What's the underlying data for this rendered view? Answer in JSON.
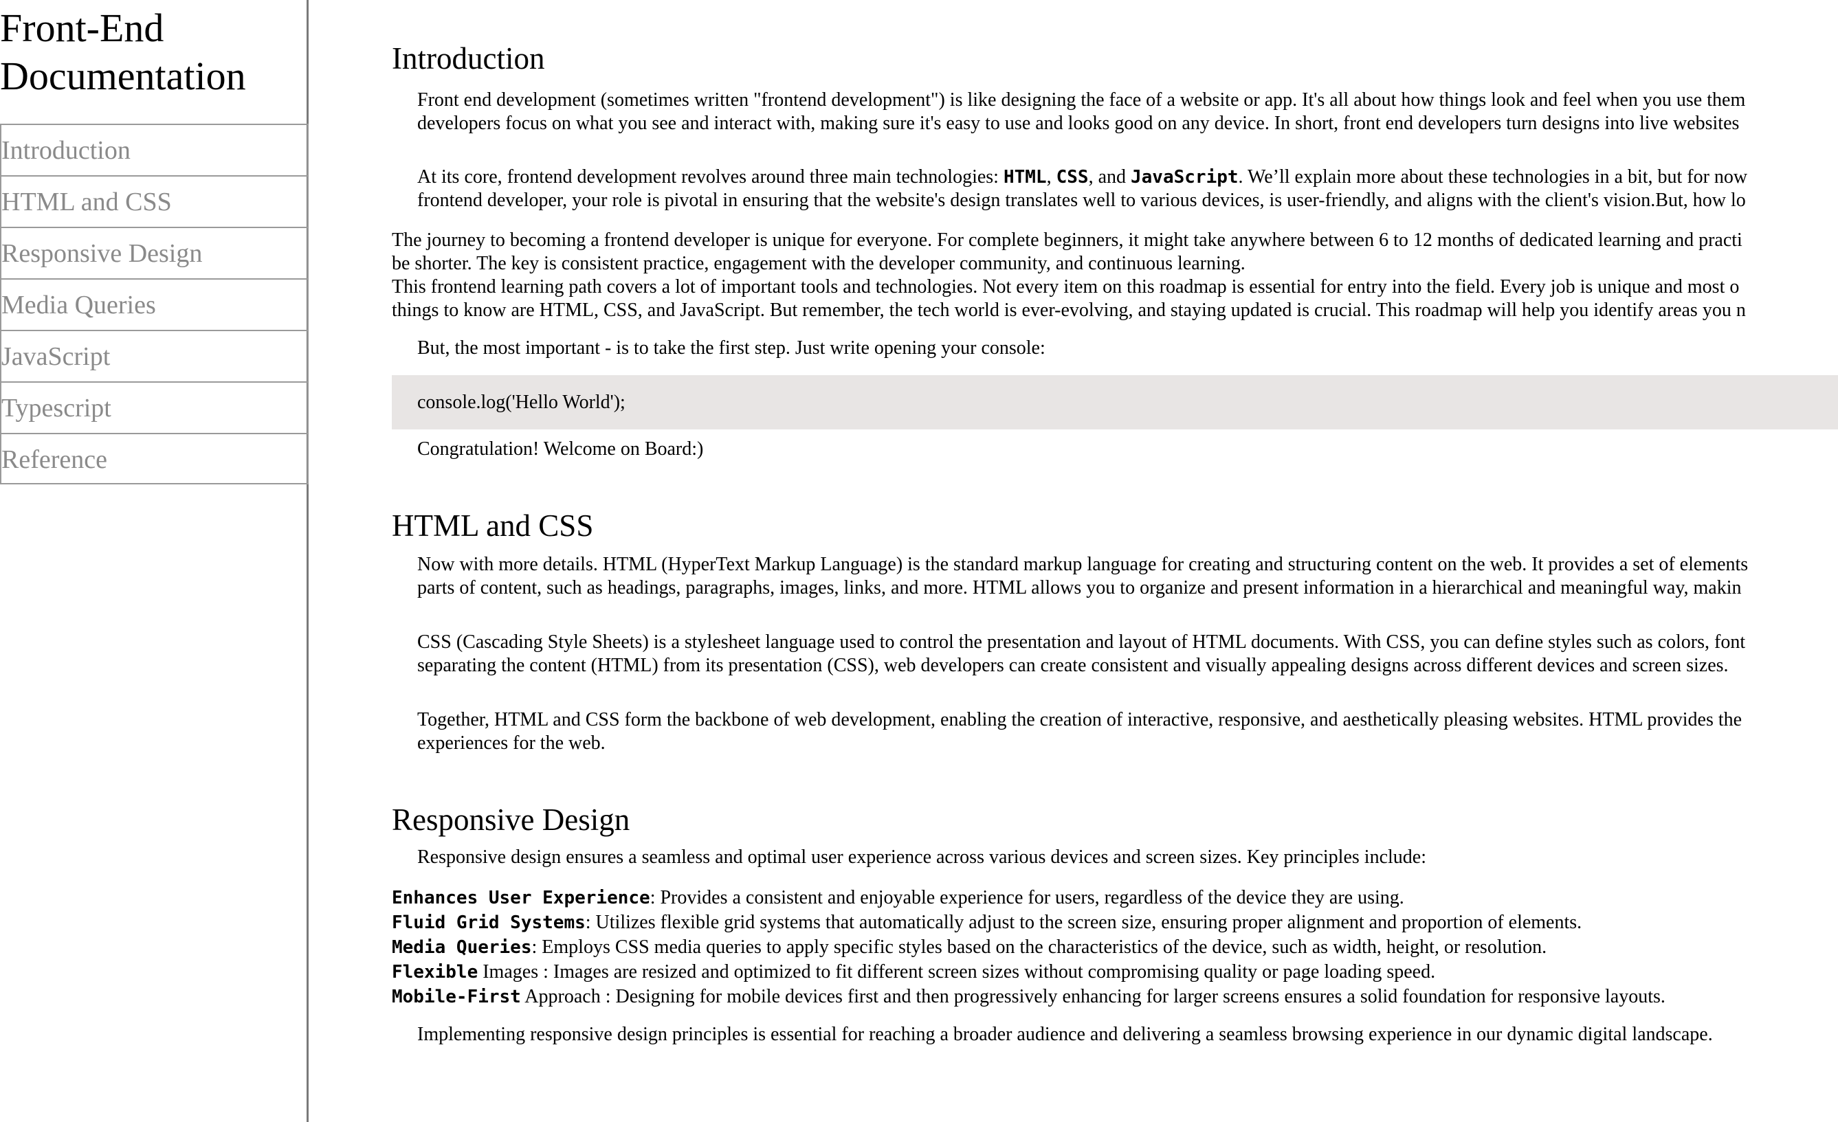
{
  "navbar": {
    "title_line1": "Front-End",
    "title_line2": "Documentation",
    "links": [
      "Introduction",
      "HTML and CSS",
      "Responsive Design",
      "Media Queries",
      "JavaScript",
      "Typescript",
      "Reference"
    ]
  },
  "intro": {
    "heading": "Introduction",
    "p1_line1": "Front end development (sometimes written \"frontend development\") is like designing the face of a website or app. It's all about how things look and feel when you use them",
    "p1_line2": "developers focus on what you see and interact with, making sure it's easy to use and looks good on any device. In short, front end developers turn designs into live websites",
    "p2_pre": "At its core, frontend development revolves around three main technologies: ",
    "p2_html": "HTML",
    "p2_sep1": ", ",
    "p2_css": "CSS",
    "p2_sep2": ", and ",
    "p2_js": "JavaScript",
    "p2_post": ". We’ll explain more about these technologies in a bit, but for now",
    "p2_line2": "frontend developer, your role is pivotal in ensuring that the website's design translates well to various devices, is user-friendly, and aligns with the client's vision.But, how lo",
    "b1_line1": "The journey to becoming a frontend developer is unique for everyone. For complete beginners, it might take anywhere between 6 to 12 months of dedicated learning and practi",
    "b1_line2": "be shorter. The key is consistent practice, engagement with the developer community, and continuous learning.",
    "b2_line1": "This frontend learning path covers a lot of important tools and technologies. Not every item on this roadmap is essential for entry into the field. Every job is unique and most o",
    "b2_line2": "things to know are HTML, CSS, and JavaScript. But remember, the tech world is ever-evolving, and staying updated is crucial. This roadmap will help you identify areas you n",
    "p3": "But, the most important - is to take the first step. Just write opening your console:",
    "code": "console.log('Hello World');",
    "p4": "Congratulation! Welcome on Board:)"
  },
  "htmlcss": {
    "heading": "HTML and CSS",
    "p1_line1": "Now with more details. HTML (HyperText Markup Language) is the standard markup language for creating and structuring content on the web. It provides a set of elements",
    "p1_line2": "parts of content, such as headings, paragraphs, images, links, and more. HTML allows you to organize and present information in a hierarchical and meaningful way, makin",
    "p2_line1": "CSS (Cascading Style Sheets) is a stylesheet language used to control the presentation and layout of HTML documents. With CSS, you can define styles such as colors, font",
    "p2_line2": "separating the content (HTML) from its presentation (CSS), web developers can create consistent and visually appealing designs across different devices and screen sizes.",
    "p3_line1": "Together, HTML and CSS form the backbone of web development, enabling the creation of interactive, responsive, and aesthetically pleasing websites. HTML provides the",
    "p3_line2": "experiences for the web."
  },
  "responsive": {
    "heading": "Responsive Design",
    "p1": "Responsive design ensures a seamless and optimal user experience across various devices and screen sizes. Key principles include:",
    "items": [
      {
        "term": "Enhances User Experience",
        "text": ": Provides a consistent and enjoyable experience for users, regardless of the device they are using."
      },
      {
        "term": "Fluid Grid Systems",
        "text": ": Utilizes flexible grid systems that automatically adjust to the screen size, ensuring proper alignment and proportion of elements."
      },
      {
        "term": "Media Queries",
        "text": ": Employs CSS media queries to apply specific styles based on the characteristics of the device, such as width, height, or resolution."
      },
      {
        "term": "Flexible",
        "text": " Images : Images are resized and optimized to fit different screen sizes without compromising quality or page loading speed."
      },
      {
        "term": "Mobile-First",
        "text": " Approach : Designing for mobile devices first and then progressively enhancing for larger screens ensures a solid foundation for responsive layouts."
      }
    ],
    "p2": "Implementing responsive design principles is essential for reaching a broader audience and delivering a seamless browsing experience in our dynamic digital landscape."
  }
}
